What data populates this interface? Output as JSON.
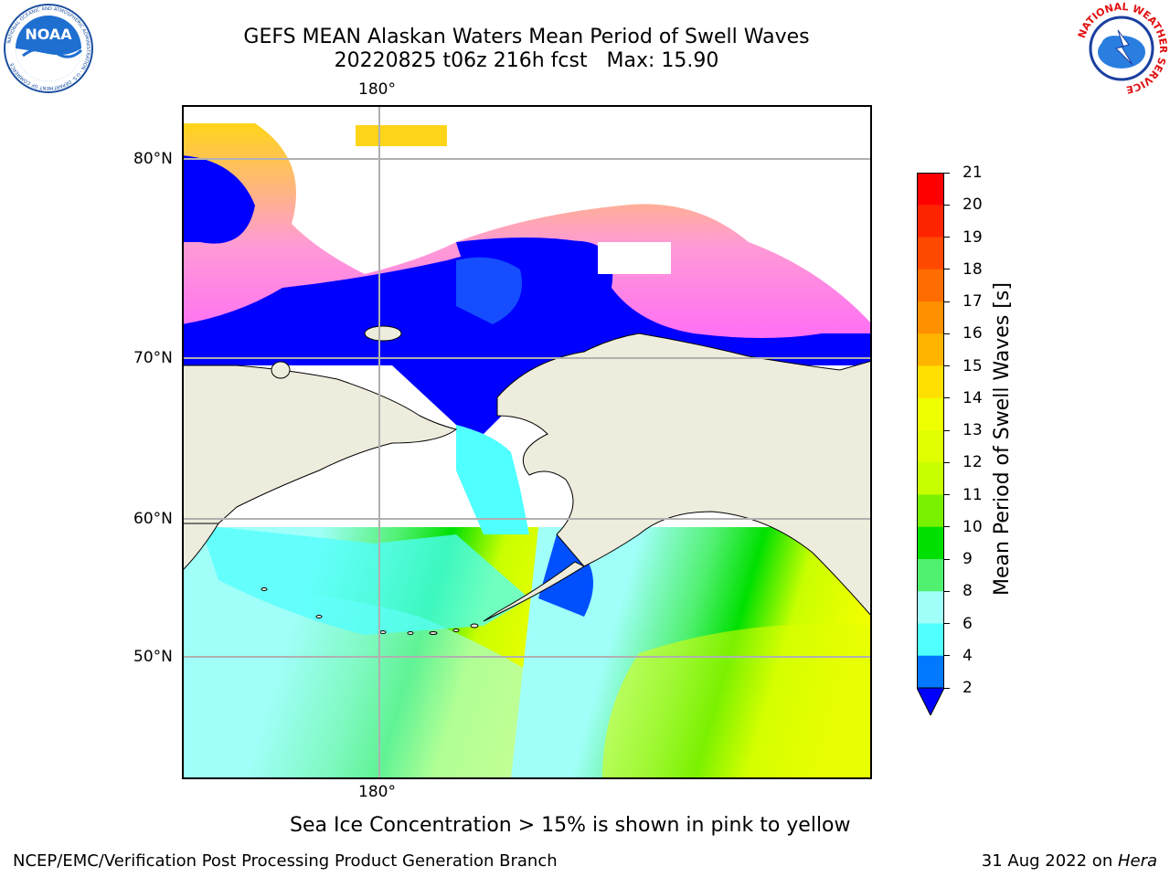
{
  "title": {
    "line1": "GEFS MEAN Alaskan Waters Mean Period of Swell Waves",
    "line2": "20220825 t06z 216h fcst   Max: 15.90"
  },
  "logos": {
    "left": {
      "name": "NOAA",
      "text": "NOAA",
      "ring_text": "NATIONAL OCEANIC AND ATMOSPHERIC ADMINISTRATION · U.S. DEPARTMENT OF COMMERCE"
    },
    "right": {
      "name": "National Weather Service",
      "ring_text": "NATIONAL WEATHER SERVICE"
    }
  },
  "map": {
    "top_lon_label": "180°",
    "bottom_lon_label": "180°",
    "lat_labels": [
      "80°N",
      "70°N",
      "60°N",
      "50°N"
    ],
    "colors": {
      "land": "#eeecdc",
      "no_data": "#ffffff",
      "gridline": "#b0b0b0",
      "coast": "#000000"
    }
  },
  "colorbar": {
    "label": "Mean Period of Swell Waves [s]",
    "ticks": [
      "21",
      "20",
      "19",
      "18",
      "17",
      "16",
      "15",
      "14",
      "13",
      "12",
      "11",
      "10",
      "9",
      "8",
      "6",
      "4",
      "2"
    ],
    "bin_colors": [
      "#ff0000",
      "#ff2400",
      "#ff4800",
      "#ff6c00",
      "#ff9000",
      "#ffb400",
      "#ffe000",
      "#f0ff00",
      "#e0ff00",
      "#c8ff00",
      "#78f000",
      "#00e000",
      "#50f070",
      "#a0fff8",
      "#50ffff",
      "#00ffff",
      "#00e8ff",
      "#0078ff"
    ],
    "under_color": "#0000ff"
  },
  "caption": "Sea Ice Concentration > 15% is shown in pink to yellow",
  "footer": {
    "left": "NCEP/EMC/Verification Post Processing Product Generation Branch",
    "right_date": "31 Aug 2022 on ",
    "right_machine": "Hera"
  }
}
